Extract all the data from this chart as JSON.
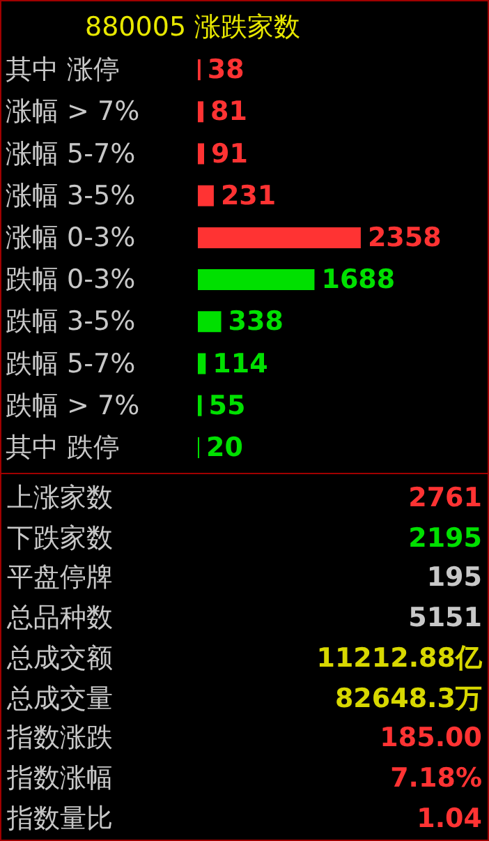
{
  "chart_data": [
    {
      "type": "bar",
      "orientation": "horizontal",
      "title": "880005 涨跌家数",
      "categories": [
        "其中 涨停",
        "涨幅 > 7%",
        "涨幅 5-7%",
        "涨幅 3-5%",
        "涨幅 0-3%",
        "跌幅 0-3%",
        "跌幅 3-5%",
        "跌幅 5-7%",
        "跌幅 > 7%",
        "其中 跌停"
      ],
      "values": [
        38,
        81,
        91,
        231,
        2358,
        1688,
        338,
        114,
        55,
        20
      ],
      "colors": [
        "#ff3333",
        "#ff3333",
        "#ff3333",
        "#ff3333",
        "#ff3333",
        "#00e000",
        "#00e000",
        "#00e000",
        "#00e000",
        "#00e000"
      ],
      "data_labels": true
    },
    {
      "type": "other",
      "annotations": [
        "上涨家数",
        "2761",
        "下跌家数",
        "2195",
        "平盘停牌",
        "195",
        "总品种数",
        "5151",
        "总成交额",
        "11212.88亿",
        "总成交量",
        "82648.3万",
        "指数涨跌",
        "185.00",
        "指数涨幅",
        "7.18%",
        "指数量比",
        "1.04"
      ]
    }
  ]
}
